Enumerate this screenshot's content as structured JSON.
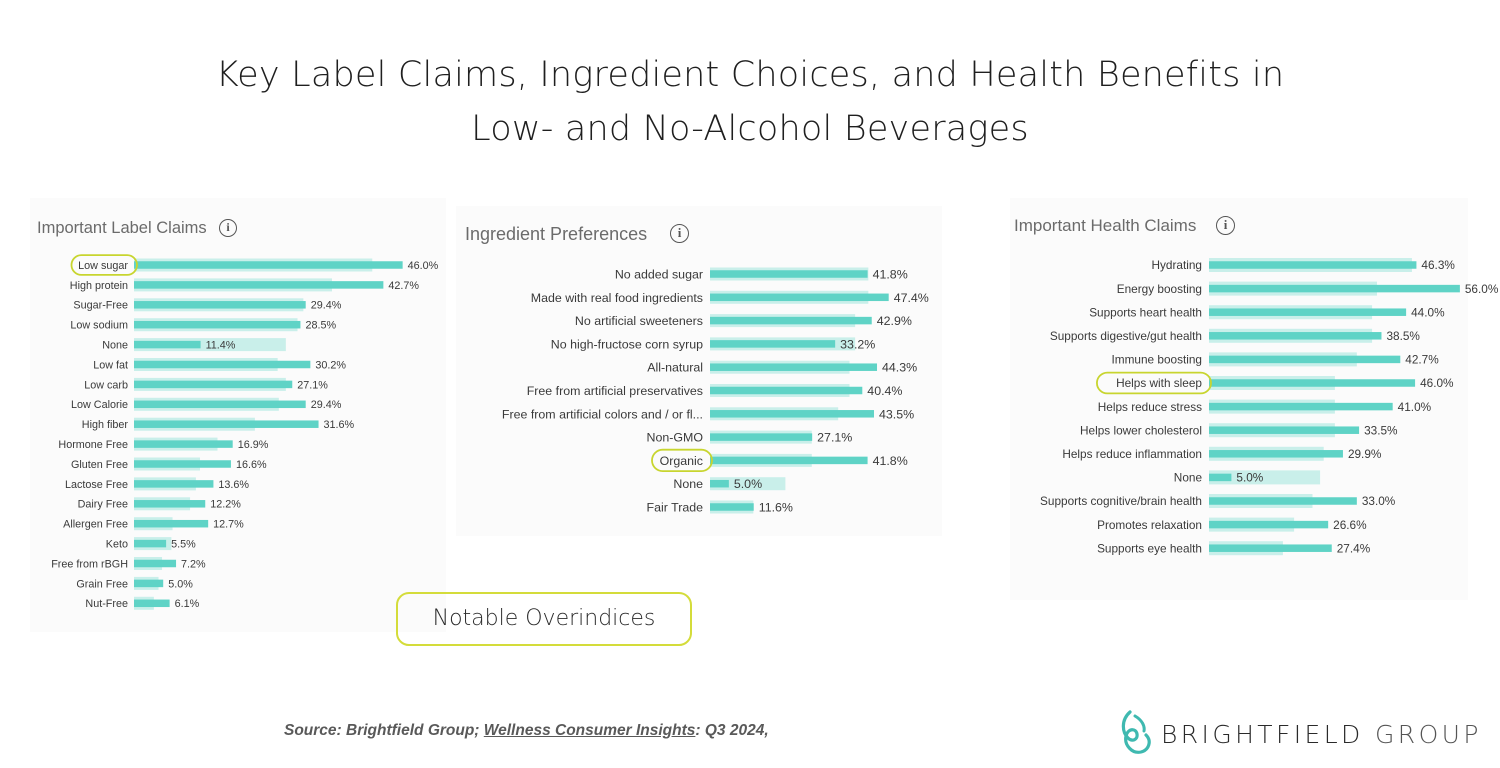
{
  "title": {
    "line1": "Key Label Claims, Ingredient Choices, and Health Benefits in",
    "line2": "Low- and No-Alcohol Beverages"
  },
  "colors": {
    "bar": "#5fd3c6",
    "bar_background": "#c9efea",
    "highlight": "#c8d52f",
    "panel_background": "#fbfbfb"
  },
  "callout": {
    "label": "Notable Overindices"
  },
  "source": {
    "prefix": "Source: Brightfield Group; ",
    "link": "Wellness Consumer Insights",
    "suffix": ": Q3 2024,"
  },
  "logo": {
    "text_bold": "BRIGHTFIELD",
    "text_light": " GROUP",
    "icon": "brightfield-logo-icon"
  },
  "chart_data": [
    {
      "type": "bar",
      "orientation": "horizontal",
      "title": "Important Label Claims",
      "info_icon": "info-icon",
      "categories": [
        "Low sugar",
        "High protein",
        "Sugar-Free",
        "Low sodium",
        "None",
        "Low fat",
        "Low carb",
        "Low Calorie",
        "High fiber",
        "Hormone Free",
        "Gluten Free",
        "Lactose Free",
        "Dairy Free",
        "Allergen Free",
        "Keto",
        "Free from rBGH",
        "Grain Free",
        "Nut-Free"
      ],
      "values": [
        46.0,
        42.7,
        29.4,
        28.5,
        11.4,
        30.2,
        27.1,
        29.4,
        31.6,
        16.9,
        16.6,
        13.6,
        12.2,
        12.7,
        5.5,
        7.2,
        5.0,
        6.1
      ],
      "labels": [
        "46.0%",
        "42.7%",
        "29.4%",
        "28.5%",
        "11.4%",
        "30.2%",
        "27.1%",
        "29.4%",
        "31.6%",
        "16.9%",
        "16.6%",
        "13.6%",
        "12.2%",
        "12.7%",
        "5.5%",
        "7.2%",
        "5.0%",
        "6.1%"
      ],
      "benchmark": [
        40.8,
        33.9,
        29.0,
        28.0,
        26.0,
        24.6,
        26.0,
        24.8,
        20.7,
        14.3,
        11.3,
        10.6,
        9.6,
        6.6,
        6.4,
        4.8,
        4.2,
        3.4
      ],
      "highlighted": [
        "Low sugar"
      ],
      "xlim": [
        0,
        52
      ]
    },
    {
      "type": "bar",
      "orientation": "horizontal",
      "title": "Ingredient Preferences",
      "info_icon": "info-icon",
      "categories": [
        "No added sugar",
        "Made with real food ingredients",
        "No artificial sweeteners",
        "No high-fructose corn syrup",
        "All-natural",
        "Free from artificial preservatives",
        "Free from artificial colors and / or fl...",
        "Non-GMO",
        "Organic",
        "None",
        "Fair Trade"
      ],
      "values": [
        41.8,
        47.4,
        42.9,
        33.2,
        44.3,
        40.4,
        43.5,
        27.1,
        41.8,
        5.0,
        11.6
      ],
      "labels": [
        "41.8%",
        "47.4%",
        "42.9%",
        "33.2%",
        "44.3%",
        "40.4%",
        "43.5%",
        "27.1%",
        "41.8%",
        "5.0%",
        "11.6%"
      ],
      "benchmark": [
        42.0,
        42.0,
        38.5,
        38.5,
        37.0,
        37.0,
        34.0,
        27.0,
        27.0,
        20.0,
        11.5
      ],
      "highlighted": [
        "Organic"
      ],
      "xlim": [
        0,
        55
      ]
    },
    {
      "type": "bar",
      "orientation": "horizontal",
      "title": "Important Health Claims",
      "info_icon": "info-icon",
      "categories": [
        "Hydrating",
        "Energy boosting",
        "Supports heart health",
        "Supports digestive/gut health",
        "Immune boosting",
        "Helps with sleep",
        "Helps reduce stress",
        "Helps lower cholesterol",
        "Helps reduce inflammation",
        "None",
        "Supports cognitive/brain health",
        "Promotes relaxation",
        "Supports eye health"
      ],
      "values": [
        46.3,
        56.0,
        44.0,
        38.5,
        42.7,
        46.0,
        41.0,
        33.5,
        29.9,
        5.0,
        33.0,
        26.6,
        27.4
      ],
      "labels": [
        "46.3%",
        "56.0%",
        "44.0%",
        "38.5%",
        "42.7%",
        "46.0%",
        "41.0%",
        "33.5%",
        "29.9%",
        "5.0%",
        "33.0%",
        "26.6%",
        "27.4%"
      ],
      "benchmark": [
        45.3,
        37.5,
        36.4,
        36.4,
        33.0,
        28.1,
        28.1,
        28.1,
        25.6,
        24.8,
        23.1,
        19.0,
        16.5
      ],
      "highlighted": [
        "Helps with sleep"
      ],
      "xlim": [
        0,
        62
      ]
    }
  ]
}
